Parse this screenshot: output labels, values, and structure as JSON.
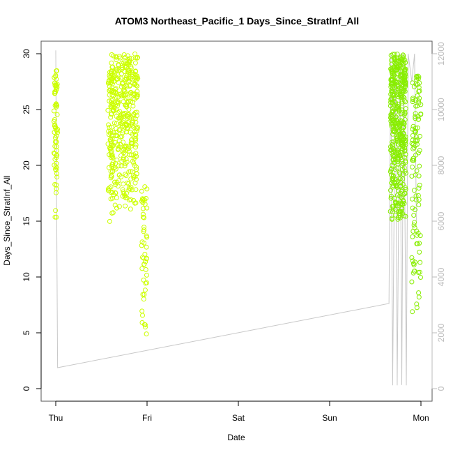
{
  "chart_data": {
    "type": "scatter",
    "title": "ATOM3 Northeast_Pacific_1 Days_Since_StratInf_All",
    "xlabel": "Date",
    "ylabel": "Days_Since_StratInf_All",
    "x_ticks": [
      "Thu",
      "Fri",
      "Sat",
      "Sun",
      "Mon"
    ],
    "y_ticks": [
      "0",
      "5",
      "10",
      "15",
      "20",
      "25",
      "30"
    ],
    "y_right_ticks": [
      "0",
      "2000",
      "4000",
      "6000",
      "8000",
      "10000",
      "12000"
    ],
    "xlim": [
      "Thu",
      "Mon"
    ],
    "ylim": [
      0,
      30
    ],
    "y_right_lim": [
      0,
      12000
    ],
    "grid": false,
    "legend": "none",
    "colors": {
      "points_early": "#ccff00",
      "points_late": "#88ee00",
      "track_line": "#c8c8c8",
      "right_axis": "#bbbbbb",
      "box": "#555555"
    },
    "series": [
      {
        "marker": "circle",
        "groups": [
          {
            "x_day": 0.0,
            "x_spread": 0.04,
            "y_min": 15,
            "y_max": 28.5,
            "n": 70
          },
          {
            "x_day": 0.6,
            "x_spread": 0.06,
            "y_min": 14.5,
            "y_max": 28.5,
            "n": 60
          },
          {
            "x_day": 0.75,
            "x_spread": 0.3,
            "y_min": 16,
            "y_max": 30,
            "n": 380
          },
          {
            "x_day": 0.97,
            "x_spread": 0.06,
            "y_min": 3,
            "y_max": 18.5,
            "n": 50
          },
          {
            "x_day": 3.75,
            "x_spread": 0.17,
            "y_min": 15,
            "y_max": 30,
            "n": 420
          },
          {
            "x_day": 3.95,
            "x_spread": 0.1,
            "y_min": 6.5,
            "y_max": 28,
            "n": 110
          }
        ]
      },
      {
        "axis": "right",
        "type": "line",
        "points": [
          [
            0.0,
            12100
          ],
          [
            0.0,
            12120
          ],
          [
            0.02,
            750
          ],
          [
            3.65,
            3050
          ],
          [
            3.67,
            12000
          ],
          [
            3.69,
            120
          ],
          [
            3.72,
            12000
          ],
          [
            3.74,
            120
          ],
          [
            3.77,
            12000
          ],
          [
            3.79,
            130
          ],
          [
            3.81,
            12000
          ],
          [
            3.84,
            120
          ],
          [
            3.86,
            12000
          ],
          [
            3.9,
            11000
          ],
          [
            3.93,
            12000
          ],
          [
            3.95,
            6000
          ]
        ]
      }
    ]
  }
}
